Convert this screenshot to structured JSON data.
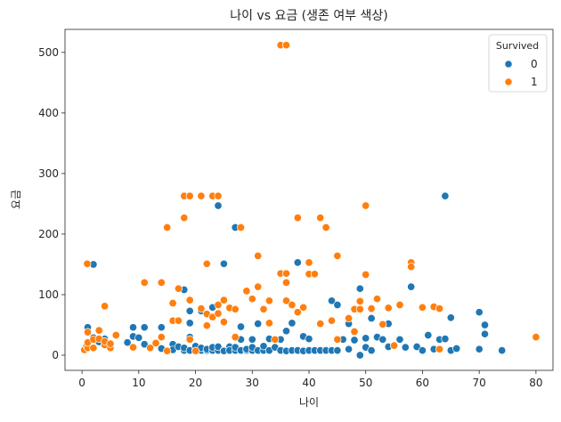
{
  "chart_data": {
    "type": "scatter",
    "title": "나이 vs 요금 (생존 여부 색상)",
    "xlabel": "나이",
    "ylabel": "요금",
    "xlim": [
      -3,
      83
    ],
    "ylim": [
      -25,
      538
    ],
    "xticks": [
      0,
      10,
      20,
      30,
      40,
      50,
      60,
      70,
      80
    ],
    "yticks": [
      0,
      100,
      200,
      300,
      400,
      500
    ],
    "grid": false,
    "legend": {
      "title": "Survived",
      "placement": "top-right",
      "entries": [
        "0",
        "1"
      ]
    },
    "colors": {
      "0": "#1f77b4",
      "1": "#ff7f0e",
      "marker_edge": "#ffffff"
    },
    "series": [
      {
        "name": "0",
        "points": [
          [
            1,
            46
          ],
          [
            2,
            150
          ],
          [
            2,
            29
          ],
          [
            3,
            22
          ],
          [
            4,
            27
          ],
          [
            6,
            33
          ],
          [
            8,
            21
          ],
          [
            9,
            31
          ],
          [
            9,
            46
          ],
          [
            10,
            29
          ],
          [
            11,
            46
          ],
          [
            11,
            18
          ],
          [
            14,
            46
          ],
          [
            14,
            11
          ],
          [
            16,
            18
          ],
          [
            16,
            9
          ],
          [
            17,
            14
          ],
          [
            18,
            8
          ],
          [
            18,
            12
          ],
          [
            18,
            108
          ],
          [
            19,
            8
          ],
          [
            19,
            73
          ],
          [
            19,
            30
          ],
          [
            19,
            53
          ],
          [
            20,
            9
          ],
          [
            20,
            15
          ],
          [
            21,
            8
          ],
          [
            21,
            73
          ],
          [
            21,
            12
          ],
          [
            22,
            8
          ],
          [
            22,
            10
          ],
          [
            23,
            8
          ],
          [
            23,
            13
          ],
          [
            23,
            79
          ],
          [
            24,
            247
          ],
          [
            24,
            8
          ],
          [
            24,
            14
          ],
          [
            25,
            8
          ],
          [
            25,
            151
          ],
          [
            25,
            7
          ],
          [
            26,
            14
          ],
          [
            26,
            8
          ],
          [
            27,
            8
          ],
          [
            27,
            211
          ],
          [
            27,
            13
          ],
          [
            28,
            8
          ],
          [
            28,
            47
          ],
          [
            28,
            26
          ],
          [
            29,
            8
          ],
          [
            29,
            10
          ],
          [
            30,
            8
          ],
          [
            30,
            13
          ],
          [
            30,
            26
          ],
          [
            31,
            8
          ],
          [
            31,
            52
          ],
          [
            32,
            8
          ],
          [
            32,
            15
          ],
          [
            33,
            8
          ],
          [
            33,
            27
          ],
          [
            34,
            13
          ],
          [
            35,
            8
          ],
          [
            35,
            26
          ],
          [
            36,
            7
          ],
          [
            36,
            40
          ],
          [
            37,
            8
          ],
          [
            37,
            53
          ],
          [
            38,
            8
          ],
          [
            38,
            153
          ],
          [
            39,
            7
          ],
          [
            39,
            31
          ],
          [
            40,
            8
          ],
          [
            40,
            27
          ],
          [
            41,
            8
          ],
          [
            42,
            8
          ],
          [
            42,
            52
          ],
          [
            43,
            8
          ],
          [
            44,
            8
          ],
          [
            44,
            90
          ],
          [
            45,
            8
          ],
          [
            45,
            83
          ],
          [
            46,
            26
          ],
          [
            47,
            10
          ],
          [
            47,
            52
          ],
          [
            48,
            25
          ],
          [
            49,
            0
          ],
          [
            49,
            110
          ],
          [
            50,
            13
          ],
          [
            50,
            28
          ],
          [
            51,
            8
          ],
          [
            51,
            61
          ],
          [
            52,
            30
          ],
          [
            53,
            26
          ],
          [
            54,
            14
          ],
          [
            54,
            52
          ],
          [
            55,
            16
          ],
          [
            56,
            26
          ],
          [
            57,
            13
          ],
          [
            58,
            113
          ],
          [
            59,
            14
          ],
          [
            60,
            8
          ],
          [
            61,
            33
          ],
          [
            62,
            10
          ],
          [
            63,
            26
          ],
          [
            64,
            263
          ],
          [
            64,
            27
          ],
          [
            65,
            62
          ],
          [
            65,
            8
          ],
          [
            66,
            11
          ],
          [
            70,
            71
          ],
          [
            70,
            10
          ],
          [
            71,
            35
          ],
          [
            71,
            50
          ],
          [
            74,
            8
          ]
        ]
      },
      {
        "name": "1",
        "points": [
          [
            0.4,
            9
          ],
          [
            0.8,
            15
          ],
          [
            0.9,
            151
          ],
          [
            1,
            38
          ],
          [
            1,
            12
          ],
          [
            1,
            21
          ],
          [
            2,
            26
          ],
          [
            2,
            12
          ],
          [
            3,
            41
          ],
          [
            3,
            27
          ],
          [
            4,
            17
          ],
          [
            4,
            23
          ],
          [
            4,
            81
          ],
          [
            5,
            12
          ],
          [
            5,
            19
          ],
          [
            6,
            33
          ],
          [
            9,
            13
          ],
          [
            11,
            120
          ],
          [
            12,
            12
          ],
          [
            13,
            20
          ],
          [
            14,
            120
          ],
          [
            14,
            30
          ],
          [
            15,
            211
          ],
          [
            15,
            7
          ],
          [
            16,
            86
          ],
          [
            16,
            57
          ],
          [
            17,
            57
          ],
          [
            17,
            110
          ],
          [
            18,
            263
          ],
          [
            18,
            227
          ],
          [
            19,
            263
          ],
          [
            19,
            91
          ],
          [
            19,
            26
          ],
          [
            20,
            7
          ],
          [
            21,
            263
          ],
          [
            21,
            77
          ],
          [
            22,
            151
          ],
          [
            22,
            68
          ],
          [
            22,
            49
          ],
          [
            23,
            263
          ],
          [
            23,
            63
          ],
          [
            24,
            263
          ],
          [
            24,
            69
          ],
          [
            24,
            83
          ],
          [
            25,
            91
          ],
          [
            25,
            55
          ],
          [
            26,
            78
          ],
          [
            27,
            76
          ],
          [
            27,
            30
          ],
          [
            28,
            211
          ],
          [
            29,
            106
          ],
          [
            30,
            93
          ],
          [
            31,
            164
          ],
          [
            31,
            113
          ],
          [
            32,
            76
          ],
          [
            33,
            90
          ],
          [
            33,
            53
          ],
          [
            34,
            26
          ],
          [
            35,
            512
          ],
          [
            35,
            135
          ],
          [
            36,
            512
          ],
          [
            36,
            135
          ],
          [
            36,
            120
          ],
          [
            36,
            90
          ],
          [
            37,
            83
          ],
          [
            38,
            227
          ],
          [
            38,
            71
          ],
          [
            39,
            79
          ],
          [
            40,
            153
          ],
          [
            40,
            134
          ],
          [
            41,
            134
          ],
          [
            42,
            227
          ],
          [
            42,
            52
          ],
          [
            43,
            211
          ],
          [
            44,
            57
          ],
          [
            45,
            164
          ],
          [
            45,
            26
          ],
          [
            47,
            61
          ],
          [
            48,
            76
          ],
          [
            48,
            39
          ],
          [
            49,
            89
          ],
          [
            49,
            76
          ],
          [
            50,
            247
          ],
          [
            50,
            133
          ],
          [
            51,
            77
          ],
          [
            52,
            93
          ],
          [
            53,
            51
          ],
          [
            54,
            78
          ],
          [
            55,
            16
          ],
          [
            56,
            83
          ],
          [
            58,
            153
          ],
          [
            58,
            146
          ],
          [
            60,
            79
          ],
          [
            62,
            80
          ],
          [
            63,
            77
          ],
          [
            63,
            10
          ],
          [
            80,
            30
          ]
        ]
      }
    ]
  }
}
